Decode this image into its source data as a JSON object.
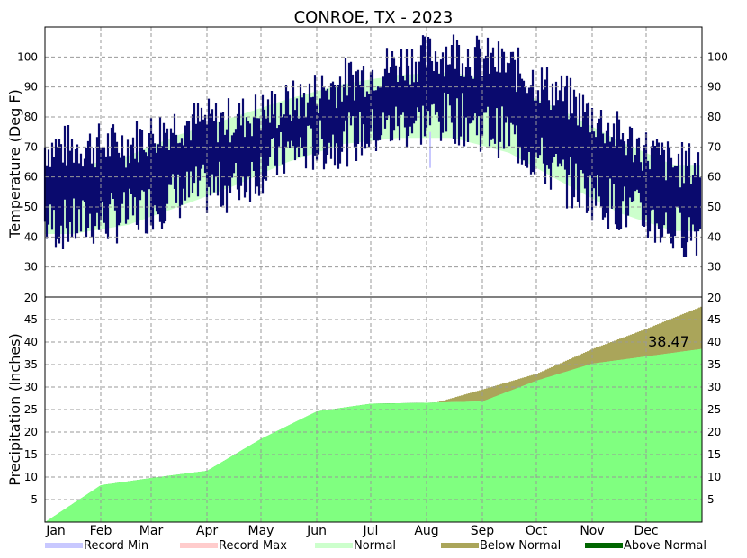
{
  "chart_data": {
    "type": "area",
    "title": "CONROE, TX - 2023",
    "months": [
      "Jan",
      "Feb",
      "Mar",
      "Apr",
      "May",
      "Jun",
      "Jul",
      "Aug",
      "Sep",
      "Oct",
      "Nov",
      "Dec"
    ],
    "temperature": {
      "ylabel": "Temperature (Deg F)",
      "yticks": [
        30,
        40,
        50,
        60,
        70,
        80,
        90,
        100
      ],
      "ylim": [
        20,
        110
      ],
      "grid": true,
      "normal_high_by_month": [
        63,
        67,
        74,
        80,
        86,
        91,
        94,
        95,
        90,
        82,
        72,
        64
      ],
      "normal_low_by_month": [
        41,
        44,
        50,
        57,
        65,
        71,
        73,
        73,
        68,
        58,
        48,
        42
      ],
      "observed_high_by_month": [
        70,
        71,
        78,
        79,
        84,
        92,
        98,
        102,
        97,
        87,
        74,
        64
      ],
      "observed_low_by_month": [
        44,
        47,
        54,
        57,
        68,
        72,
        77,
        80,
        74,
        59,
        50,
        42
      ],
      "record_min_marker": {
        "month": "Aug",
        "value": 63
      }
    },
    "precipitation": {
      "ylabel": "Precipitation (Inches)",
      "yticks": [
        5,
        10,
        15,
        20,
        25,
        30,
        35,
        40,
        45
      ],
      "ylim": [
        0,
        50
      ],
      "grid": true,
      "cumulative_normal_month_start": [
        0,
        4.0,
        7.2,
        10.5,
        14.2,
        19.0,
        23.2,
        26.0,
        29.5,
        33.0,
        38.5,
        43.0
      ],
      "cumulative_normal_year_end": 48,
      "cumulative_observed_month_start": [
        0,
        8.2,
        9.8,
        11.4,
        18.5,
        24.6,
        26.3,
        26.5,
        26.8,
        31.4,
        35.2,
        36.8
      ],
      "cumulative_observed_year_end": 38.47,
      "total_label": "38.47"
    },
    "legend": [
      {
        "label": "Record Min",
        "color": "#c8c8ff"
      },
      {
        "label": "Record Max",
        "color": "#ffcccc"
      },
      {
        "label": "Normal",
        "color": "#ccffcc"
      },
      {
        "label": "Below Normal",
        "color": "#aaa55a"
      },
      {
        "label": "Above Normal",
        "color": "#006600"
      }
    ],
    "colors": {
      "observed_temperature": "#0a0a6e",
      "normal_band": "#ccffcc",
      "precip_observed_fill": "#80ff80",
      "below_normal": "#aaa55a",
      "above_normal": "#006600",
      "record_min": "#c8c8ff"
    }
  }
}
